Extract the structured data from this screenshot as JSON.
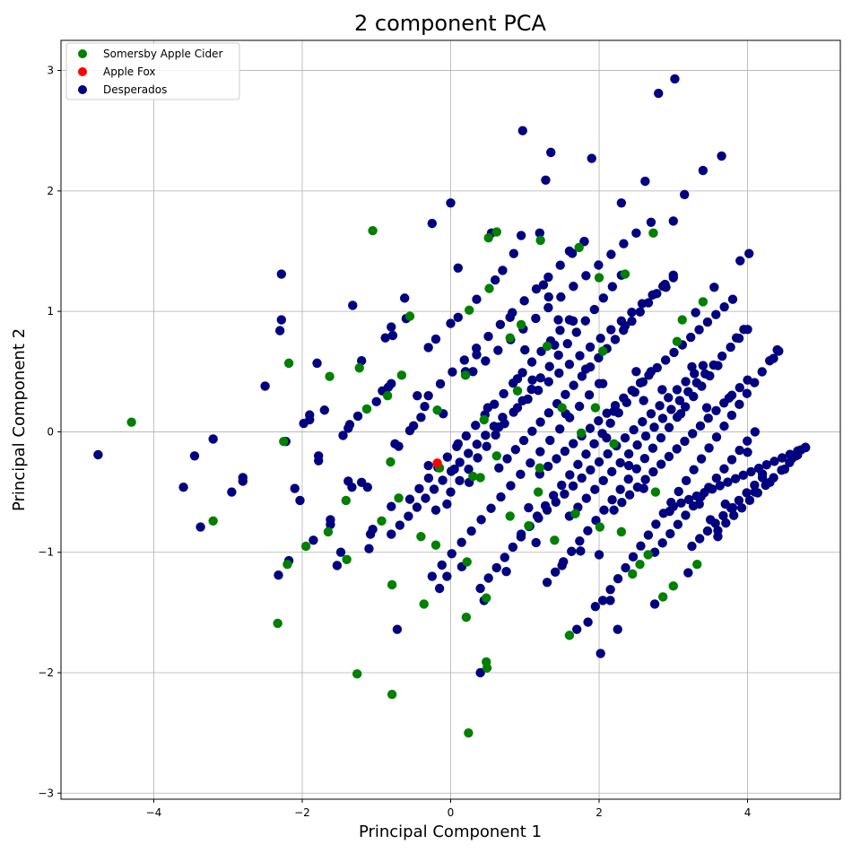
{
  "chart_data": {
    "type": "scatter",
    "title": "2 component PCA",
    "xlabel": "Principal Component 1",
    "ylabel": "Principal Component 2",
    "xlim": [
      -5.25,
      5.25
    ],
    "ylim": [
      -3.05,
      3.25
    ],
    "xticks": [
      -4,
      -2,
      0,
      2,
      4
    ],
    "yticks": [
      -3,
      -2,
      -1,
      0,
      1,
      2,
      3
    ],
    "xtick_labels": [
      "−4",
      "−2",
      "0",
      "2",
      "4"
    ],
    "ytick_labels": [
      "−3",
      "−2",
      "−1",
      "0",
      "1",
      "2",
      "3"
    ],
    "grid": true,
    "legend_position": "top-left",
    "series": [
      {
        "name": "Somersby Apple Cider",
        "color": "#008000",
        "points": [
          [
            -4.3,
            0.08
          ],
          [
            -3.2,
            -0.74
          ],
          [
            -2.33,
            -1.59
          ],
          [
            -2.2,
            -1.1
          ],
          [
            -2.25,
            -0.08
          ],
          [
            -2.18,
            0.57
          ],
          [
            -1.95,
            -0.95
          ],
          [
            -1.65,
            -0.83
          ],
          [
            -1.63,
            0.46
          ],
          [
            -1.41,
            -0.57
          ],
          [
            -1.4,
            -1.06
          ],
          [
            -1.26,
            -2.01
          ],
          [
            -1.23,
            0.53
          ],
          [
            -1.13,
            0.19
          ],
          [
            -1.05,
            1.67
          ],
          [
            -0.93,
            -0.74
          ],
          [
            -0.85,
            0.3
          ],
          [
            -0.81,
            -0.25
          ],
          [
            -0.79,
            -2.18
          ],
          [
            -0.79,
            -1.27
          ],
          [
            -0.7,
            -0.55
          ],
          [
            -0.66,
            0.47
          ],
          [
            -0.55,
            0.96
          ],
          [
            -0.4,
            -0.87
          ],
          [
            -0.36,
            -1.43
          ],
          [
            -0.2,
            -0.94
          ],
          [
            -0.18,
            0.18
          ],
          [
            -0.15,
            -0.3
          ],
          [
            0.2,
            0.47
          ],
          [
            0.21,
            -1.54
          ],
          [
            0.22,
            -1.08
          ],
          [
            0.24,
            -2.5
          ],
          [
            0.25,
            1.01
          ],
          [
            0.3,
            -0.37
          ],
          [
            0.4,
            -0.38
          ],
          [
            0.45,
            0.1
          ],
          [
            0.48,
            -1.38
          ],
          [
            0.48,
            -1.91
          ],
          [
            0.49,
            -1.96
          ],
          [
            0.51,
            1.61
          ],
          [
            0.52,
            1.19
          ],
          [
            0.62,
            1.66
          ],
          [
            0.62,
            -0.2
          ],
          [
            0.8,
            -0.7
          ],
          [
            0.8,
            0.78
          ],
          [
            0.9,
            0.34
          ],
          [
            0.95,
            0.89
          ],
          [
            1.05,
            -0.78
          ],
          [
            1.18,
            -0.5
          ],
          [
            1.21,
            1.59
          ],
          [
            1.2,
            -0.3
          ],
          [
            1.3,
            0.71
          ],
          [
            1.4,
            -0.9
          ],
          [
            1.5,
            0.2
          ],
          [
            1.6,
            -1.69
          ],
          [
            1.68,
            -0.68
          ],
          [
            1.73,
            1.53
          ],
          [
            1.76,
            -0.01
          ],
          [
            1.95,
            0.2
          ],
          [
            2.0,
            1.28
          ],
          [
            2.01,
            -0.79
          ],
          [
            2.05,
            0.67
          ],
          [
            2.2,
            -0.1
          ],
          [
            2.3,
            -0.83
          ],
          [
            2.35,
            1.31
          ],
          [
            2.45,
            -1.18
          ],
          [
            2.55,
            -1.1
          ],
          [
            2.66,
            -1.02
          ],
          [
            2.73,
            1.65
          ],
          [
            2.76,
            -0.5
          ],
          [
            2.86,
            -1.37
          ],
          [
            3.0,
            -1.28
          ],
          [
            3.05,
            0.75
          ],
          [
            3.12,
            0.93
          ],
          [
            3.32,
            -1.1
          ],
          [
            3.4,
            1.08
          ]
        ]
      },
      {
        "name": "Apple Fox",
        "color": "#ff0000",
        "points": [
          [
            -0.18,
            -0.26
          ]
        ]
      },
      {
        "name": "Desperados",
        "color": "#000080",
        "points": [
          [
            -4.75,
            -0.19
          ],
          [
            -3.6,
            -0.46
          ],
          [
            -3.45,
            -0.2
          ],
          [
            -3.37,
            -0.79
          ],
          [
            -3.2,
            -0.06
          ],
          [
            -2.95,
            -0.5
          ],
          [
            -2.8,
            -0.38
          ],
          [
            -2.8,
            -0.41
          ],
          [
            -2.5,
            0.38
          ],
          [
            -2.32,
            -1.19
          ],
          [
            -2.28,
            1.31
          ],
          [
            -2.28,
            0.93
          ],
          [
            -2.3,
            0.84
          ],
          [
            -2.22,
            -0.08
          ],
          [
            -2.18,
            -1.07
          ],
          [
            -2.1,
            -0.47
          ],
          [
            -2.03,
            -0.57
          ],
          [
            -1.98,
            0.07
          ],
          [
            -1.9,
            0.14
          ],
          [
            -1.9,
            0.1
          ],
          [
            -1.85,
            -0.9
          ],
          [
            -1.8,
            0.57
          ],
          [
            -1.78,
            -0.2
          ],
          [
            -1.78,
            -0.24
          ],
          [
            -1.7,
            0.18
          ],
          [
            -1.62,
            -0.77
          ],
          [
            -1.62,
            -0.73
          ],
          [
            -1.53,
            -1.11
          ],
          [
            -1.48,
            -1.0
          ],
          [
            -1.45,
            -0.03
          ],
          [
            -1.38,
            0.03
          ],
          [
            -1.36,
            0.06
          ],
          [
            -1.38,
            -0.41
          ],
          [
            -1.33,
            -0.46
          ],
          [
            -1.32,
            1.05
          ],
          [
            -1.25,
            0.13
          ],
          [
            -1.2,
            0.59
          ],
          [
            -1.2,
            -0.42
          ],
          [
            -1.12,
            -0.46
          ],
          [
            -1.1,
            -0.97
          ],
          [
            -1.08,
            -0.85
          ],
          [
            -1.05,
            -0.81
          ],
          [
            -1.0,
            0.25
          ],
          [
            -0.92,
            0.34
          ],
          [
            -0.88,
            0.78
          ],
          [
            -0.84,
            0.37
          ],
          [
            -0.8,
            0.87
          ],
          [
            -0.78,
            0.8
          ],
          [
            -0.8,
            0.4
          ],
          [
            -0.8,
            -0.62
          ],
          [
            -0.75,
            -0.1
          ],
          [
            -0.72,
            -1.64
          ],
          [
            -0.7,
            -0.12
          ],
          [
            -0.62,
            1.11
          ],
          [
            -0.6,
            0.94
          ],
          [
            -0.55,
            0.01
          ],
          [
            -0.5,
            0.05
          ],
          [
            -0.45,
            0.3
          ],
          [
            -0.4,
            0.12
          ],
          [
            -0.35,
            0.21
          ],
          [
            -0.3,
            0.7
          ],
          [
            -0.2,
            0.77
          ],
          [
            -0.25,
            1.73
          ],
          [
            -0.3,
            -0.28
          ],
          [
            -0.2,
            -0.65
          ],
          [
            -0.15,
            -1.3
          ],
          [
            -0.1,
            0.15
          ],
          [
            -0.05,
            -0.6
          ],
          [
            0.0,
            1.9
          ],
          [
            -0.05,
            -1.2
          ],
          [
            0.0,
            0.9
          ],
          [
            0.05,
            -0.31
          ],
          [
            0.1,
            1.36
          ],
          [
            0.1,
            0.95
          ],
          [
            0.1,
            -0.1
          ],
          [
            0.15,
            -1.12
          ],
          [
            0.2,
            0.5
          ],
          [
            0.25,
            -0.42
          ],
          [
            0.35,
            0.64
          ],
          [
            0.35,
            1.1
          ],
          [
            0.4,
            -2.0
          ],
          [
            0.45,
            -1.4
          ],
          [
            0.5,
            0.2
          ],
          [
            0.55,
            1.65
          ],
          [
            0.6,
            1.26
          ],
          [
            0.65,
            0.04
          ],
          [
            0.7,
            1.34
          ],
          [
            0.75,
            -1.16
          ],
          [
            0.8,
            0.95
          ],
          [
            0.85,
            1.48
          ],
          [
            0.9,
            0.44
          ],
          [
            0.95,
            1.63
          ],
          [
            0.97,
            2.5
          ],
          [
            1.0,
            0.68
          ],
          [
            1.05,
            -0.63
          ],
          [
            1.1,
            0.43
          ],
          [
            1.15,
            -0.92
          ],
          [
            1.2,
            1.65
          ],
          [
            1.25,
            1.22
          ],
          [
            1.28,
            2.09
          ],
          [
            1.32,
            1.12
          ],
          [
            1.35,
            2.32
          ],
          [
            1.4,
            0.72
          ],
          [
            1.45,
            0.93
          ],
          [
            1.5,
            -1.11
          ],
          [
            1.55,
            0.15
          ],
          [
            1.6,
            1.5
          ],
          [
            1.65,
            0.92
          ],
          [
            1.7,
            -1.64
          ],
          [
            1.75,
            -0.99
          ],
          [
            1.8,
            1.58
          ],
          [
            1.82,
            0.52
          ],
          [
            1.85,
            -1.58
          ],
          [
            1.9,
            2.27
          ],
          [
            1.95,
            -1.45
          ],
          [
            2.0,
            -1.02
          ],
          [
            2.02,
            -1.84
          ],
          [
            2.05,
            0.4
          ],
          [
            2.1,
            -0.05
          ],
          [
            2.15,
            -1.4
          ],
          [
            2.2,
            0.17
          ],
          [
            2.25,
            -1.64
          ],
          [
            2.3,
            1.9
          ],
          [
            2.35,
            0.88
          ],
          [
            2.4,
            -0.28
          ],
          [
            2.5,
            0.5
          ],
          [
            2.6,
            0.26
          ],
          [
            2.6,
            -0.47
          ],
          [
            2.62,
            2.08
          ],
          [
            2.7,
            1.74
          ],
          [
            2.75,
            -1.43
          ],
          [
            2.8,
            2.81
          ],
          [
            2.85,
            0.35
          ],
          [
            2.9,
            1.2
          ],
          [
            2.95,
            -0.66
          ],
          [
            3.0,
            1.75
          ],
          [
            3.02,
            2.93
          ],
          [
            3.1,
            0.15
          ],
          [
            3.15,
            1.97
          ],
          [
            3.2,
            -1.17
          ],
          [
            3.25,
            0.54
          ],
          [
            3.3,
            0.99
          ],
          [
            3.35,
            -0.6
          ],
          [
            3.4,
            2.17
          ],
          [
            3.45,
            0.2
          ],
          [
            3.5,
            -0.73
          ],
          [
            3.55,
            1.2
          ],
          [
            3.6,
            -0.87
          ],
          [
            3.65,
            2.29
          ],
          [
            3.7,
            -0.6
          ],
          [
            3.75,
            0.28
          ],
          [
            3.8,
            -0.63
          ],
          [
            3.85,
            0.78
          ],
          [
            3.9,
            1.42
          ],
          [
            3.95,
            0.85
          ],
          [
            4.0,
            -0.17
          ],
          [
            4.02,
            1.48
          ],
          [
            4.1,
            -0.5
          ],
          [
            4.2,
            -0.35
          ],
          [
            4.3,
            -0.42
          ],
          [
            4.35,
            0.61
          ],
          [
            4.42,
            0.67
          ],
          [
            4.5,
            -0.31
          ],
          [
            4.6,
            -0.22
          ],
          [
            4.65,
            -0.2
          ],
          [
            4.72,
            -0.15
          ],
          [
            4.78,
            -0.13
          ]
        ],
        "bands": [
          {
            "from": [
              -0.8,
              -0.85
            ],
            "to": [
              0.7,
              0.12
            ],
            "n": 14
          },
          {
            "from": [
              -0.55,
              -0.56
            ],
            "to": [
              1.6,
              0.93
            ],
            "n": 18
          },
          {
            "from": [
              -0.3,
              0.3
            ],
            "to": [
              1.8,
              1.58
            ],
            "n": 14
          },
          {
            "from": [
              -0.25,
              -1.2
            ],
            "to": [
              2.0,
              0.4
            ],
            "n": 18
          },
          {
            "from": [
              0.0,
              -0.5
            ],
            "to": [
              2.3,
              1.3
            ],
            "n": 20
          },
          {
            "from": [
              0.3,
              0.5
            ],
            "to": [
              2.5,
              1.65
            ],
            "n": 14
          },
          {
            "from": [
              0.4,
              -1.3
            ],
            "to": [
              2.7,
              0.5
            ],
            "n": 22
          },
          {
            "from": [
              0.65,
              -0.3
            ],
            "to": [
              3.0,
              1.3
            ],
            "n": 22
          },
          {
            "from": [
              0.9,
              0.2
            ],
            "to": [
              3.0,
              1.28
            ],
            "n": 16
          },
          {
            "from": [
              0.95,
              -0.85
            ],
            "to": [
              3.4,
              0.55
            ],
            "n": 22
          },
          {
            "from": [
              1.3,
              -1.25
            ],
            "to": [
              3.6,
              0.55
            ],
            "n": 22
          },
          {
            "from": [
              1.2,
              -0.35
            ],
            "to": [
              3.8,
              1.1
            ],
            "n": 24
          },
          {
            "from": [
              1.6,
              -0.7
            ],
            "to": [
              4.0,
              0.85
            ],
            "n": 22
          },
          {
            "from": [
              2.05,
              -1.4
            ],
            "to": [
              4.4,
              0.68
            ],
            "n": 24
          },
          {
            "from": [
              2.2,
              -0.65
            ],
            "to": [
              4.0,
              0.43
            ],
            "n": 18
          },
          {
            "from": [
              2.75,
              -1.0
            ],
            "to": [
              4.1,
              0.0
            ],
            "n": 14
          },
          {
            "from": [
              3.0,
              -0.62
            ],
            "to": [
              4.78,
              -0.13
            ],
            "n": 18
          },
          {
            "from": [
              3.25,
              -0.95
            ],
            "to": [
              4.2,
              -0.38
            ],
            "n": 10
          },
          {
            "from": [
              3.6,
              -0.82
            ],
            "to": [
              4.78,
              -0.13
            ],
            "n": 12
          }
        ]
      }
    ]
  }
}
